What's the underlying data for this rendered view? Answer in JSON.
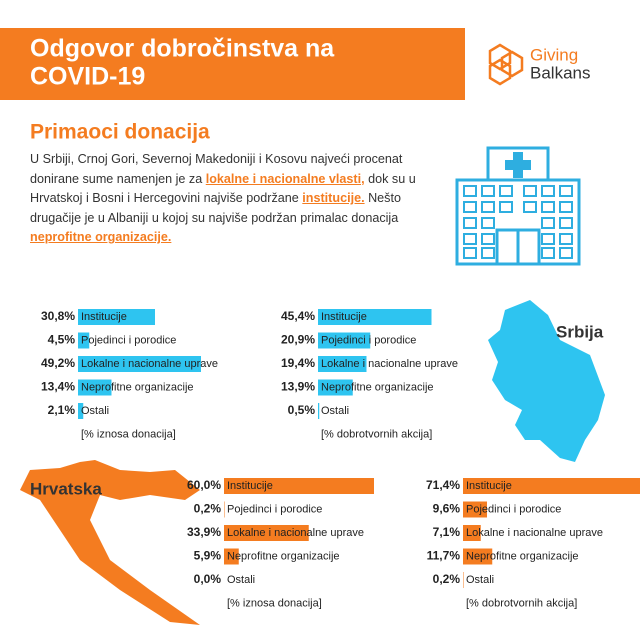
{
  "header": {
    "title": [
      "Odgovor dobročinstva na",
      "COVID-19"
    ],
    "logo": [
      "Giving",
      "Balkans"
    ]
  },
  "section_title": "Primaoci donacija",
  "paragraph": [
    {
      "text": "U Srbiji, Crnoj Gori, Severnoj Makedoniji i Kosovu najveći procenat donirane sume namenjen je za "
    },
    {
      "text": "lokalne i nacionalne vlasti,",
      "emphasis": true
    },
    {
      "text": " dok su u Hrvatskoj i Bosni i Hercegovini najviše podržane "
    },
    {
      "text": "institucije.",
      "emphasis": true
    },
    {
      "text": " Nešto drugačije je u Albaniji u kojoj su najviše podržan primalac donacija "
    },
    {
      "text": "neprofitne organizacije.",
      "emphasis": true
    }
  ],
  "maps": [
    {
      "label": "Srbija",
      "color": "#2ec4f0"
    },
    {
      "label": "Hrvatska",
      "color": "#f47c20"
    }
  ],
  "chart_data": [
    {
      "type": "bar",
      "color": "#2ec4f0",
      "caption": "[% iznosa donacija]",
      "categories": [
        "Institucije",
        "Pojedinci i porodice",
        "Lokalne i nacionalne uprave",
        "Neprofitne organizacije",
        "Ostali"
      ],
      "values": [
        30.8,
        4.5,
        49.2,
        13.4,
        2.1
      ],
      "value_labels": [
        "30,8%",
        "4,5%",
        "49,2%",
        "13,4%",
        "2,1%"
      ]
    },
    {
      "type": "bar",
      "color": "#2ec4f0",
      "caption": "[% dobrotvornih akcija]",
      "categories": [
        "Institucije",
        "Pojedinci i porodice",
        "Lokalne i nacionalne uprave",
        "Neprofitne organizacije",
        "Ostali"
      ],
      "values": [
        45.4,
        20.9,
        19.4,
        13.9,
        0.5
      ],
      "value_labels": [
        "45,4%",
        "20,9%",
        "19,4%",
        "13,9%",
        "0,5%"
      ]
    },
    {
      "type": "bar",
      "color": "#f47c20",
      "caption": "[% iznosa donacija]",
      "categories": [
        "Institucije",
        "Pojedinci i porodice",
        "Lokalne i nacionalne uprave",
        "Neprofitne organizacije",
        "Ostali"
      ],
      "values": [
        60.0,
        0.2,
        33.9,
        5.9,
        0.0
      ],
      "value_labels": [
        "60,0%",
        "0,2%",
        "33,9%",
        "5,9%",
        "0,0%"
      ]
    },
    {
      "type": "bar",
      "color": "#f47c20",
      "caption": "[% dobrotvornih akcija]",
      "categories": [
        "Institucije",
        "Pojedinci i porodice",
        "Lokalne i nacionalne uprave",
        "Neprofitne organizacije",
        "Ostali"
      ],
      "values": [
        71.4,
        9.6,
        7.1,
        11.7,
        0.2
      ],
      "value_labels": [
        "71,4%",
        "9,6%",
        "7,1%",
        "11,7%",
        "0,2%"
      ]
    }
  ]
}
